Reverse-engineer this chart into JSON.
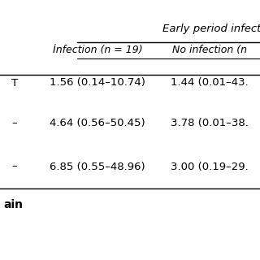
{
  "header_group": "Early period infectio",
  "col1_header": "İnfection (n = 19)",
  "col2_header": "No infection (n",
  "rows": [
    {
      "row_label": "T",
      "col1": "1.56 (0.14–10.74)",
      "col2": "1.44 (0.01–43."
    },
    {
      "row_label": "–",
      "col1": "4.64 (0.56–50.45)",
      "col2": "3.78 (0.01–38."
    },
    {
      "row_label": "–",
      "col1": "6.85 (0.55–48.96)",
      "col2": "3.00 (0.19–29."
    }
  ],
  "footer_label": "ain",
  "background_color": "#ffffff",
  "line_color": "#000000",
  "font_size": 9.0,
  "header_font_size": 9.0
}
